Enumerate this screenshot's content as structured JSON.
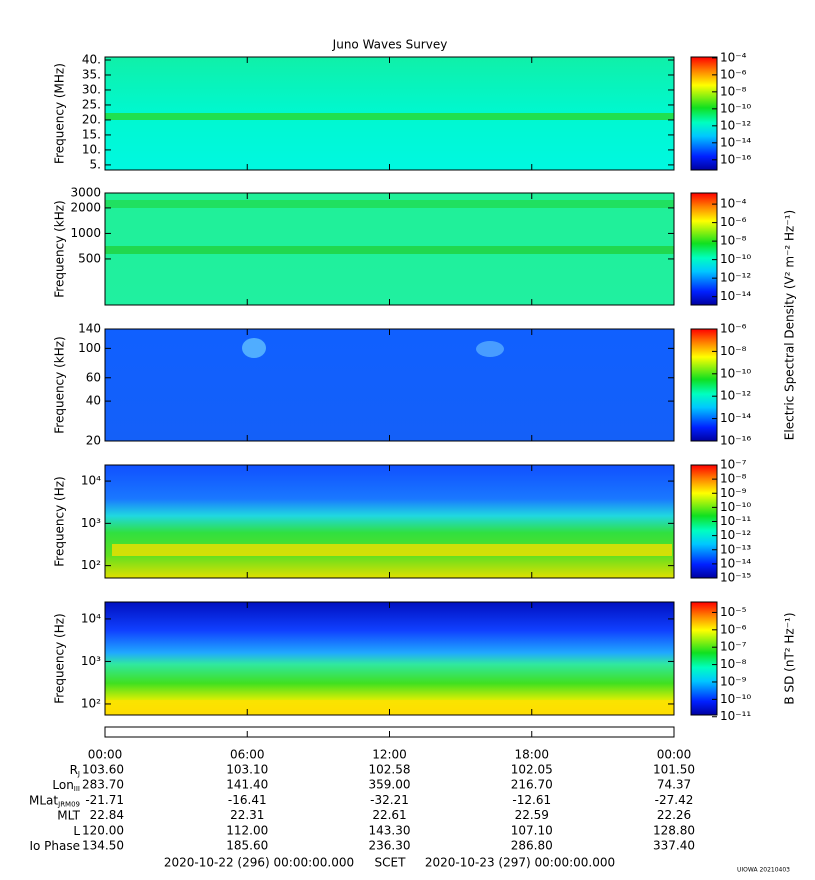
{
  "chart_data": {
    "type": "spectrogram",
    "title": "Juno Waves Survey",
    "xlim": [
      0,
      24
    ],
    "xticks": [
      {
        "value": 0,
        "label": "00:00"
      },
      {
        "value": 6,
        "label": "06:00"
      },
      {
        "value": 12,
        "label": "12:00"
      },
      {
        "value": 18,
        "label": "18:00"
      },
      {
        "value": 24,
        "label": "00:00"
      }
    ],
    "panels": [
      {
        "ylabel": "Frequency (MHz)",
        "log": false,
        "ylim": [
          3.3,
          41
        ],
        "yticks": [
          {
            "value": 40,
            "label": "40."
          },
          {
            "value": 35,
            "label": "35."
          },
          {
            "value": 30,
            "label": "30."
          },
          {
            "value": 25,
            "label": "25."
          },
          {
            "value": 20,
            "label": "20."
          },
          {
            "value": 15,
            "label": "15."
          },
          {
            "value": 10,
            "label": "10."
          },
          {
            "value": 5,
            "label": "5."
          }
        ],
        "clim": [
          -17.2,
          -3.9
        ],
        "cticks": [
          {
            "value": -4,
            "label": "10⁻⁴"
          },
          {
            "value": -6,
            "label": "10⁻⁶"
          },
          {
            "value": -8,
            "label": "10⁻⁸"
          },
          {
            "value": -10,
            "label": "10⁻¹⁰"
          },
          {
            "value": -12,
            "label": "10⁻¹²"
          },
          {
            "value": -14,
            "label": "10⁻¹⁴"
          },
          {
            "value": -16,
            "label": "10⁻¹⁶"
          }
        ]
      },
      {
        "ylabel": "Frequency (kHz)",
        "log": true,
        "ylim": [
          143,
          3000
        ],
        "yticks": [
          3000,
          2000,
          1000,
          500
        ],
        "clim": [
          -14.9,
          -2.8
        ],
        "cticks": [
          {
            "value": -4,
            "label": "10⁻⁴"
          },
          {
            "value": -6,
            "label": "10⁻⁶"
          },
          {
            "value": -8,
            "label": "10⁻⁸"
          },
          {
            "value": -10,
            "label": "10⁻¹⁰"
          },
          {
            "value": -12,
            "label": "10⁻¹²"
          },
          {
            "value": -14,
            "label": "10⁻¹⁴"
          }
        ],
        "colorbar_label": "Electric Spectral Density (V² m⁻² Hz⁻¹)"
      },
      {
        "ylabel": "Frequency (kHz)",
        "log": true,
        "ylim": [
          20,
          140
        ],
        "yticks": [
          140,
          100,
          60,
          40,
          20
        ],
        "clim": [
          -16,
          -6
        ],
        "cticks": [
          {
            "value": -6,
            "label": "10⁻⁶"
          },
          {
            "value": -8,
            "label": "10⁻⁸"
          },
          {
            "value": -10,
            "label": "10⁻¹⁰"
          },
          {
            "value": -12,
            "label": "10⁻¹²"
          },
          {
            "value": -14,
            "label": "10⁻¹⁴"
          },
          {
            "value": -16,
            "label": "10⁻¹⁶"
          }
        ]
      },
      {
        "ylabel": "Frequency (Hz)",
        "log": true,
        "ylim": [
          51,
          24000
        ],
        "yticks": [
          {
            "value": 10000,
            "label": "10⁴"
          },
          {
            "value": 1000,
            "label": "10³"
          },
          {
            "value": 100,
            "label": "10²"
          }
        ],
        "clim": [
          -15,
          -7
        ],
        "cticks": [
          {
            "value": -7,
            "label": "10⁻⁷"
          },
          {
            "value": -8,
            "label": "10⁻⁸"
          },
          {
            "value": -9,
            "label": "10⁻⁹"
          },
          {
            "value": -10,
            "label": "10⁻¹⁰"
          },
          {
            "value": -11,
            "label": "10⁻¹¹"
          },
          {
            "value": -12,
            "label": "10⁻¹²"
          },
          {
            "value": -13,
            "label": "10⁻¹³"
          },
          {
            "value": -14,
            "label": "10⁻¹⁴"
          },
          {
            "value": -15,
            "label": "10⁻¹⁵"
          }
        ]
      },
      {
        "ylabel": "Frequency (Hz)",
        "log": true,
        "ylim": [
          55,
          25000
        ],
        "yticks": [
          {
            "value": 10000,
            "label": "10⁴"
          },
          {
            "value": 1000,
            "label": "10³"
          },
          {
            "value": 100,
            "label": "10²"
          }
        ],
        "clim": [
          -10.9,
          -4.4
        ],
        "cticks": [
          {
            "value": -5,
            "label": "10⁻⁵"
          },
          {
            "value": -6,
            "label": "10⁻⁶"
          },
          {
            "value": -7,
            "label": "10⁻⁷"
          },
          {
            "value": -8,
            "label": "10⁻⁸"
          },
          {
            "value": -9,
            "label": "10⁻⁹"
          },
          {
            "value": -10,
            "label": "10⁻¹⁰"
          },
          {
            "value": -11,
            "label": "10⁻¹¹"
          }
        ],
        "colorbar_label": "B SD (nT² Hz⁻¹)"
      }
    ]
  },
  "ephemeris": {
    "rows": [
      {
        "label": "R",
        "sub": "J",
        "values": [
          "103.60",
          "103.10",
          "102.58",
          "102.05",
          "101.50"
        ]
      },
      {
        "label": "Lon",
        "sub": "III",
        "values": [
          "283.70",
          "141.40",
          "359.00",
          "216.70",
          "74.37"
        ]
      },
      {
        "label": "MLat",
        "sub": "JRM09",
        "values": [
          "-21.71",
          "-16.41",
          "-32.21",
          "-12.61",
          "-27.42"
        ]
      },
      {
        "label": "MLT",
        "values": [
          "22.84",
          "22.31",
          "22.61",
          "22.59",
          "22.26"
        ]
      },
      {
        "label": "L",
        "values": [
          "120.00",
          "112.00",
          "143.30",
          "107.10",
          "128.80"
        ]
      },
      {
        "label": "Io Phase",
        "values": [
          "134.50",
          "185.60",
          "236.30",
          "286.80",
          "337.40"
        ]
      }
    ],
    "start": "2020-10-22 (296) 00:00:00.000",
    "scet": "SCET",
    "end": "2020-10-23 (297) 00:00:00.000"
  },
  "footer": "UIOWA 20210403"
}
